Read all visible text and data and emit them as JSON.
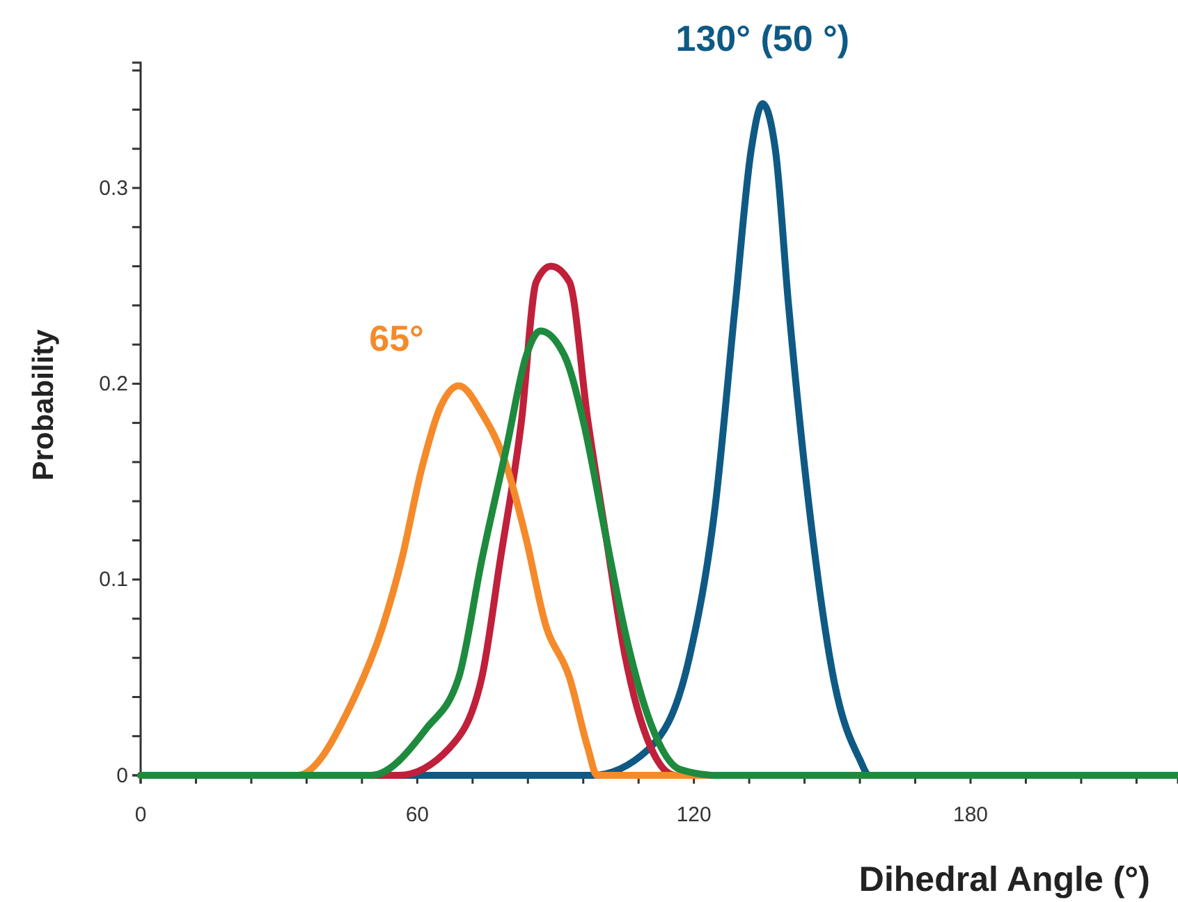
{
  "chart_data": {
    "type": "line",
    "xlabel": "Dihedral Angle (°)",
    "ylabel": "Probability",
    "xlim": [
      0,
      225
    ],
    "ylim": [
      0,
      0.364
    ],
    "xticks": [
      0,
      {
        "value": 12,
        "label": null
      },
      {
        "value": 24,
        "label": null
      },
      {
        "value": 36,
        "label": null
      },
      {
        "value": 48,
        "label": null
      },
      60,
      {
        "value": 72,
        "label": null
      },
      {
        "value": 84,
        "label": null
      },
      {
        "value": 96,
        "label": null
      },
      {
        "value": 108,
        "label": null
      },
      120,
      {
        "value": 132,
        "label": null
      },
      {
        "value": 144,
        "label": null
      },
      {
        "value": 156,
        "label": null
      },
      {
        "value": 168,
        "label": null
      },
      180,
      {
        "value": 192,
        "label": null
      },
      {
        "value": 204,
        "label": null
      },
      {
        "value": 216,
        "label": null
      }
    ],
    "yticks": [
      0,
      {
        "value": 0.02,
        "label": null
      },
      {
        "value": 0.04,
        "label": null
      },
      {
        "value": 0.06,
        "label": null
      },
      {
        "value": 0.08,
        "label": null
      },
      0.1,
      {
        "value": 0.12,
        "label": null
      },
      {
        "value": 0.14,
        "label": null
      },
      {
        "value": 0.16,
        "label": null
      },
      {
        "value": 0.18,
        "label": null
      },
      0.2,
      {
        "value": 0.22,
        "label": null
      },
      {
        "value": 0.24,
        "label": null
      },
      {
        "value": 0.26,
        "label": null
      },
      {
        "value": 0.28,
        "label": null
      },
      0.3,
      {
        "value": 0.32,
        "label": null
      },
      {
        "value": 0.34,
        "label": null
      },
      {
        "value": 0.36,
        "label": null
      }
    ],
    "grid": false,
    "marker": "none",
    "line_style": "solid",
    "series": [
      {
        "name": "130° (50 °)",
        "color": "#0e5a85",
        "x": [
          0,
          60,
          98,
          110,
          119,
          124.6,
          129,
          132.4,
          134.9,
          137.7,
          140.5,
          145,
          150.5,
          156,
          158,
          225
        ],
        "values": [
          0,
          0,
          0,
          0.013,
          0.06,
          0.137,
          0.241,
          0.319,
          0.343,
          0.319,
          0.241,
          0.137,
          0.047,
          0.008,
          0,
          0
        ]
      },
      {
        "color": "#c0203a",
        "x": [
          0,
          56,
          67,
          74,
          78,
          82.6,
          85.8,
          89,
          93,
          97,
          101,
          105,
          110.7,
          116,
          225
        ],
        "values": [
          0,
          0,
          0.014,
          0.05,
          0.11,
          0.181,
          0.252,
          0.26,
          0.252,
          0.181,
          0.121,
          0.062,
          0.014,
          0,
          0
        ]
      },
      {
        "name": "65°",
        "color": "#f58a2a",
        "x": [
          0,
          34,
          46,
          52.5,
          56.6,
          61,
          65,
          69,
          74,
          79.5,
          83.6,
          87.7,
          93,
          97,
          99,
          225
        ],
        "values": [
          0,
          0,
          0.038,
          0.076,
          0.11,
          0.157,
          0.188,
          0.199,
          0.185,
          0.157,
          0.121,
          0.078,
          0.05,
          0.014,
          0,
          0
        ]
      },
      {
        "color": "#1e8a3e",
        "x": [
          0,
          50,
          62,
          69,
          74,
          79.5,
          83.6,
          86.7,
          92,
          96,
          101,
          105,
          110.7,
          117,
          125,
          225
        ],
        "values": [
          0,
          0,
          0.024,
          0.05,
          0.11,
          0.169,
          0.214,
          0.227,
          0.214,
          0.181,
          0.121,
          0.074,
          0.026,
          0.003,
          0,
          0
        ]
      }
    ]
  }
}
